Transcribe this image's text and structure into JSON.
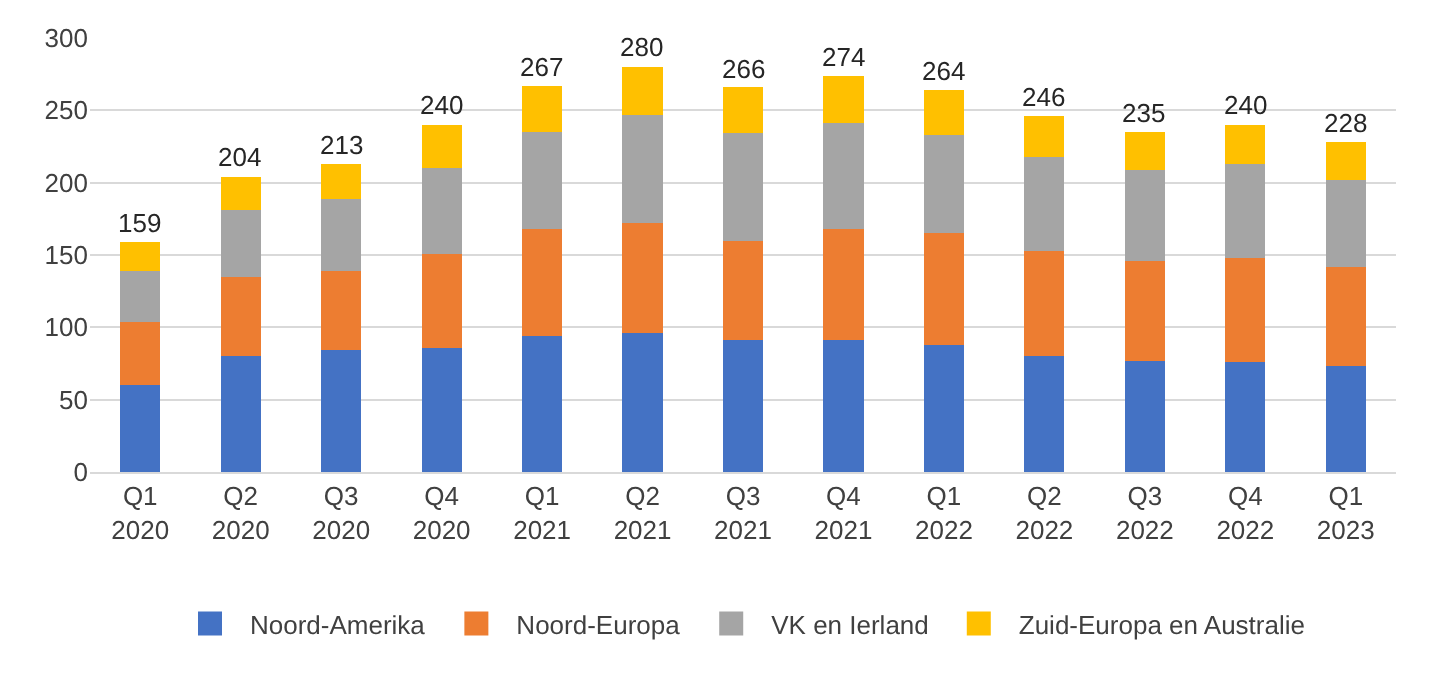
{
  "chart_data": {
    "type": "bar",
    "stacked": true,
    "categories": [
      "Q1 2020",
      "Q2 2020",
      "Q3 2020",
      "Q4 2020",
      "Q1 2021",
      "Q2 2021",
      "Q3 2021",
      "Q4 2021",
      "Q1 2022",
      "Q2 2022",
      "Q3 2022",
      "Q4 2022",
      "Q1 2023"
    ],
    "series": [
      {
        "name": "Noord-Amerika",
        "color": "#4472c4",
        "values": [
          60,
          80,
          84,
          86,
          94,
          96,
          91,
          91,
          88,
          80,
          77,
          76,
          73
        ]
      },
      {
        "name": "Noord-Europa",
        "color": "#ed7d31",
        "values": [
          44,
          55,
          55,
          65,
          74,
          76,
          69,
          77,
          77,
          73,
          69,
          72,
          69
        ]
      },
      {
        "name": "VK en Ierland",
        "color": "#a5a5a5",
        "values": [
          35,
          46,
          50,
          59,
          67,
          75,
          74,
          73,
          68,
          65,
          63,
          65,
          60
        ]
      },
      {
        "name": "Zuid-Europa en Australie",
        "color": "#ffc000",
        "values": [
          20,
          23,
          24,
          30,
          32,
          33,
          32,
          33,
          31,
          28,
          26,
          27,
          26
        ]
      }
    ],
    "totals": [
      "159",
      "204",
      "213",
      "240",
      "267",
      "280",
      "266",
      "274",
      "264",
      "246",
      "235",
      "240",
      "228"
    ],
    "ylim": [
      0,
      300
    ],
    "yticks": [
      0,
      50,
      100,
      150,
      200,
      250,
      300
    ],
    "grid": "y",
    "legend": "bottom"
  }
}
